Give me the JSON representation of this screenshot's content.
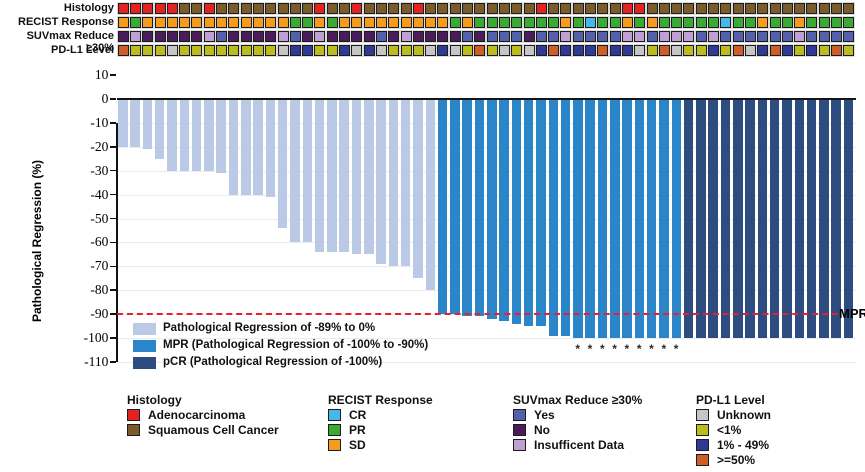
{
  "chart_data": {
    "type": "bar",
    "ylabel": "Pathological Regression (%)",
    "ylim": [
      -110,
      10
    ],
    "ytick_step": 10,
    "grid": true,
    "reference_line": {
      "value": -90,
      "label": "MPR",
      "color": "#ed1c2e",
      "style": "dashed"
    },
    "group_colors": {
      "reg": "#b9c9e6",
      "mpr": "#2a86c8",
      "pcr": "#2d4d80"
    },
    "legend": [
      {
        "group": "reg",
        "color": "#b9c9e6",
        "label": "Pathological Regression of -89% to 0%"
      },
      {
        "group": "mpr",
        "color": "#2a86c8",
        "label": "MPR (Pathological Regression of -100% to -90%)"
      },
      {
        "group": "pcr",
        "color": "#2d4d80",
        "label": "pCR (Pathological Regression of -100%)"
      }
    ],
    "star_note_symbol": "*",
    "bars": [
      {
        "value": -20,
        "group": "reg"
      },
      {
        "value": -20,
        "group": "reg"
      },
      {
        "value": -21,
        "group": "reg"
      },
      {
        "value": -25,
        "group": "reg"
      },
      {
        "value": -30,
        "group": "reg"
      },
      {
        "value": -30,
        "group": "reg"
      },
      {
        "value": -30,
        "group": "reg"
      },
      {
        "value": -30,
        "group": "reg"
      },
      {
        "value": -31,
        "group": "reg"
      },
      {
        "value": -40,
        "group": "reg"
      },
      {
        "value": -40,
        "group": "reg"
      },
      {
        "value": -40,
        "group": "reg"
      },
      {
        "value": -41,
        "group": "reg"
      },
      {
        "value": -54,
        "group": "reg"
      },
      {
        "value": -60,
        "group": "reg"
      },
      {
        "value": -60,
        "group": "reg"
      },
      {
        "value": -64,
        "group": "reg"
      },
      {
        "value": -64,
        "group": "reg"
      },
      {
        "value": -64,
        "group": "reg"
      },
      {
        "value": -65,
        "group": "reg"
      },
      {
        "value": -65,
        "group": "reg"
      },
      {
        "value": -69,
        "group": "reg"
      },
      {
        "value": -70,
        "group": "reg"
      },
      {
        "value": -70,
        "group": "reg"
      },
      {
        "value": -75,
        "group": "reg"
      },
      {
        "value": -80,
        "group": "reg"
      },
      {
        "value": -90,
        "group": "mpr"
      },
      {
        "value": -90,
        "group": "mpr"
      },
      {
        "value": -91,
        "group": "mpr"
      },
      {
        "value": -91,
        "group": "mpr"
      },
      {
        "value": -92,
        "group": "mpr"
      },
      {
        "value": -93,
        "group": "mpr"
      },
      {
        "value": -94,
        "group": "mpr"
      },
      {
        "value": -95,
        "group": "mpr"
      },
      {
        "value": -95,
        "group": "mpr"
      },
      {
        "value": -99,
        "group": "mpr"
      },
      {
        "value": -99,
        "group": "mpr"
      },
      {
        "value": -100,
        "group": "mpr",
        "star": true
      },
      {
        "value": -100,
        "group": "mpr",
        "star": true
      },
      {
        "value": -100,
        "group": "mpr",
        "star": true
      },
      {
        "value": -100,
        "group": "mpr",
        "star": true
      },
      {
        "value": -100,
        "group": "mpr",
        "star": true
      },
      {
        "value": -100,
        "group": "mpr",
        "star": true
      },
      {
        "value": -100,
        "group": "mpr",
        "star": true
      },
      {
        "value": -100,
        "group": "mpr",
        "star": true
      },
      {
        "value": -100,
        "group": "mpr",
        "star": true
      },
      {
        "value": -100,
        "group": "pcr"
      },
      {
        "value": -100,
        "group": "pcr"
      },
      {
        "value": -100,
        "group": "pcr"
      },
      {
        "value": -100,
        "group": "pcr"
      },
      {
        "value": -100,
        "group": "pcr"
      },
      {
        "value": -100,
        "group": "pcr"
      },
      {
        "value": -100,
        "group": "pcr"
      },
      {
        "value": -100,
        "group": "pcr"
      },
      {
        "value": -100,
        "group": "pcr"
      },
      {
        "value": -100,
        "group": "pcr"
      },
      {
        "value": -100,
        "group": "pcr"
      },
      {
        "value": -100,
        "group": "pcr"
      },
      {
        "value": -100,
        "group": "pcr"
      },
      {
        "value": -100,
        "group": "pcr"
      }
    ]
  },
  "tracks": [
    {
      "label": "Histology",
      "palette": {
        "A": "#e32322",
        "S": "#7a5c2b"
      },
      "cells": [
        "A",
        "A",
        "A",
        "A",
        "A",
        "S",
        "S",
        "A",
        "S",
        "S",
        "S",
        "S",
        "S",
        "S",
        "S",
        "S",
        "A",
        "S",
        "S",
        "A",
        "S",
        "S",
        "S",
        "S",
        "A",
        "S",
        "S",
        "S",
        "S",
        "S",
        "S",
        "S",
        "S",
        "S",
        "A",
        "S",
        "S",
        "S",
        "S",
        "S",
        "S",
        "A",
        "A",
        "S",
        "S",
        "S",
        "S",
        "S",
        "S",
        "S",
        "S",
        "S",
        "S",
        "S",
        "S",
        "S",
        "S",
        "S",
        "S",
        "S"
      ]
    },
    {
      "label": "RECIST Response",
      "palette": {
        "CR": "#45b7e9",
        "PR": "#3aaa35",
        "SD": "#f59b1d"
      },
      "cells": [
        "SD",
        "PR",
        "SD",
        "SD",
        "SD",
        "SD",
        "SD",
        "SD",
        "SD",
        "SD",
        "SD",
        "SD",
        "SD",
        "SD",
        "PR",
        "PR",
        "SD",
        "PR",
        "SD",
        "SD",
        "SD",
        "SD",
        "SD",
        "SD",
        "SD",
        "SD",
        "SD",
        "PR",
        "SD",
        "PR",
        "PR",
        "PR",
        "PR",
        "PR",
        "PR",
        "PR",
        "SD",
        "PR",
        "CR",
        "PR",
        "PR",
        "SD",
        "PR",
        "SD",
        "PR",
        "PR",
        "PR",
        "PR",
        "PR",
        "CR",
        "PR",
        "PR",
        "SD",
        "PR",
        "PR",
        "SD",
        "PR",
        "PR",
        "PR",
        "PR"
      ]
    },
    {
      "label": "SUVmax Reduce ≥30%",
      "palette": {
        "Y": "#5560ad",
        "N": "#4a1c5c",
        "I": "#c0a0d4"
      },
      "cells": [
        "N",
        "I",
        "N",
        "N",
        "N",
        "N",
        "N",
        "I",
        "Y",
        "N",
        "N",
        "N",
        "N",
        "I",
        "Y",
        "N",
        "I",
        "N",
        "N",
        "N",
        "N",
        "Y",
        "N",
        "I",
        "N",
        "N",
        "N",
        "N",
        "Y",
        "N",
        "Y",
        "Y",
        "Y",
        "N",
        "Y",
        "Y",
        "I",
        "Y",
        "Y",
        "Y",
        "Y",
        "I",
        "I",
        "Y",
        "I",
        "I",
        "I",
        "Y",
        "I",
        "Y",
        "Y",
        "Y",
        "Y",
        "Y",
        "Y",
        "I",
        "Y",
        "Y",
        "Y",
        "Y"
      ]
    },
    {
      "label": "PD-L1 Level",
      "palette": {
        "U": "#c6c6c6",
        "L": "#bcbd1d",
        "M": "#2e3a96",
        "H": "#cd5e27"
      },
      "cells": [
        "H",
        "L",
        "L",
        "L",
        "U",
        "L",
        "L",
        "L",
        "L",
        "L",
        "L",
        "L",
        "L",
        "U",
        "M",
        "M",
        "L",
        "L",
        "M",
        "U",
        "M",
        "U",
        "L",
        "L",
        "L",
        "U",
        "M",
        "U",
        "L",
        "H",
        "L",
        "U",
        "L",
        "U",
        "M",
        "H",
        "M",
        "M",
        "M",
        "H",
        "M",
        "M",
        "U",
        "L",
        "H",
        "U",
        "L",
        "L",
        "M",
        "L",
        "H",
        "U",
        "M",
        "H",
        "M",
        "L",
        "M",
        "L",
        "H",
        "L"
      ]
    }
  ],
  "bottom_legends": [
    {
      "title": "Histology",
      "items": [
        {
          "label": "Adenocarcinoma",
          "color": "#e32322"
        },
        {
          "label": "Squamous Cell Cancer",
          "color": "#7a5c2b"
        }
      ]
    },
    {
      "title": "RECIST Response",
      "items": [
        {
          "label": "CR",
          "color": "#45b7e9"
        },
        {
          "label": "PR",
          "color": "#3aaa35"
        },
        {
          "label": "SD",
          "color": "#f59b1d"
        }
      ]
    },
    {
      "title": "SUVmax Reduce ≥30%",
      "items": [
        {
          "label": "Yes",
          "color": "#5560ad"
        },
        {
          "label": "No",
          "color": "#4a1c5c"
        },
        {
          "label": "Insufficent Data",
          "color": "#c0a0d4"
        }
      ]
    },
    {
      "title": "PD-L1 Level",
      "items": [
        {
          "label": "Unknown",
          "color": "#c6c6c6"
        },
        {
          "label": "<1%",
          "color": "#bcbd1d"
        },
        {
          "label": "1% - 49%",
          "color": "#2e3a96"
        },
        {
          "label": ">=50%",
          "color": "#cd5e27"
        }
      ]
    }
  ]
}
